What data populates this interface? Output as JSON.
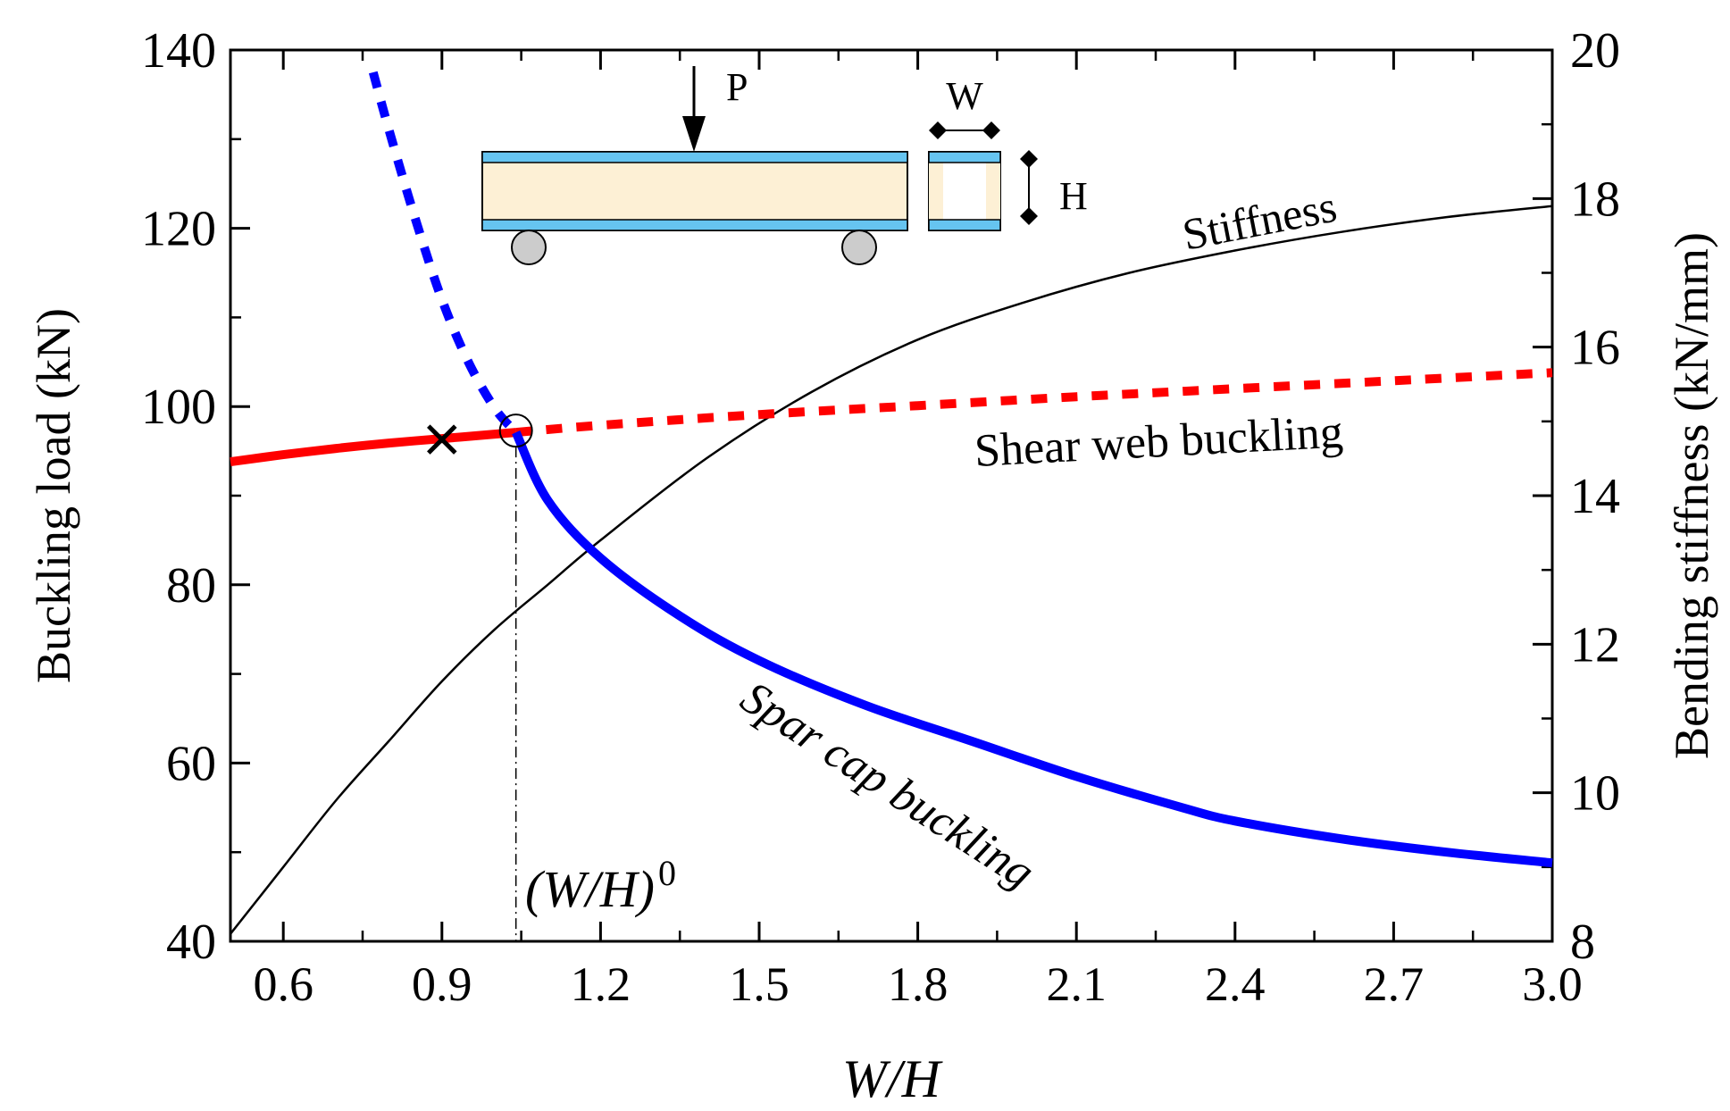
{
  "chart_data": {
    "type": "line",
    "xlabel": "W/H",
    "ylabel": "Buckling load (kN)",
    "y2label": "Bending stiffness (kN/mm)",
    "xlim": [
      0.5,
      3.0
    ],
    "ylim": [
      40,
      140
    ],
    "y2lim": [
      8,
      20
    ],
    "xticks": [
      "0.6",
      "0.9",
      "1.2",
      "1.5",
      "1.8",
      "2.1",
      "2.4",
      "2.7",
      "3.0"
    ],
    "yticks": [
      "40",
      "60",
      "80",
      "100",
      "120",
      "140"
    ],
    "y2ticks": [
      "8",
      "10",
      "12",
      "14",
      "16",
      "18",
      "20"
    ],
    "series": [
      {
        "name": "Shear web buckling",
        "axis": "left",
        "color": "#ff0000",
        "solid": {
          "x": [
            0.5,
            0.6,
            0.7,
            0.8,
            0.9,
            1.0,
            1.04
          ],
          "y": [
            93.8,
            94.6,
            95.3,
            95.9,
            96.4,
            96.9,
            97.1
          ]
        },
        "dashed": {
          "x": [
            1.04,
            1.2,
            1.5,
            1.8,
            2.1,
            2.4,
            2.7,
            3.0
          ],
          "y": [
            97.1,
            97.9,
            99.1,
            100.1,
            101.1,
            102.0,
            102.9,
            103.8
          ]
        }
      },
      {
        "name": "Spar cap buckling",
        "axis": "left",
        "color": "#0000ff",
        "dashed": {
          "x": [
            0.77,
            0.8,
            0.85,
            0.9,
            0.95,
            1.0,
            1.04
          ],
          "y": [
            137.5,
            131.0,
            121.0,
            112.0,
            105.0,
            99.8,
            97.1
          ]
        },
        "solid": {
          "x": [
            1.04,
            1.1,
            1.2,
            1.35,
            1.5,
            1.7,
            1.9,
            2.1,
            2.3,
            2.4,
            2.6,
            2.8,
            3.0
          ],
          "y": [
            97.1,
            89.5,
            83.0,
            76.5,
            71.5,
            66.5,
            62.5,
            58.5,
            55.0,
            53.5,
            51.5,
            50.0,
            48.8
          ]
        }
      },
      {
        "name": "Stiffness",
        "axis": "right",
        "color": "#000000",
        "x": [
          0.5,
          0.6,
          0.7,
          0.8,
          0.9,
          1.0,
          1.1,
          1.2,
          1.4,
          1.6,
          1.8,
          2.0,
          2.2,
          2.4,
          2.6,
          2.8,
          3.0
        ],
        "y": [
          8.1,
          9.0,
          9.9,
          10.7,
          11.5,
          12.2,
          12.8,
          13.4,
          14.5,
          15.4,
          16.1,
          16.6,
          17.0,
          17.3,
          17.55,
          17.75,
          17.9
        ]
      }
    ],
    "markers": [
      {
        "label": "cross",
        "x": 0.9,
        "y": 96.3
      },
      {
        "label": "transition",
        "x": 1.04,
        "y": 97.3
      }
    ],
    "annotations": {
      "stiffness": "Stiffness",
      "shear_web": "Shear web buckling",
      "spar_cap": "Spar cap buckling",
      "transition_base": "(W/H)",
      "transition_sup": "0",
      "transition_x": 1.04
    },
    "inset": {
      "load_label": "P",
      "width_label": "W",
      "height_label": "H"
    }
  }
}
